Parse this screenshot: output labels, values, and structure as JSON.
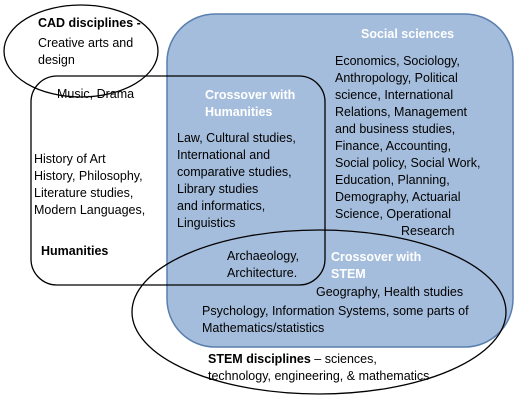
{
  "colors": {
    "social_sciences_fill": "#a5bddc",
    "social_sciences_border": "#5a7fae",
    "outline": "#000000",
    "white_text": "#ffffff"
  },
  "cad": {
    "title": "CAD disciplines -",
    "lines": [
      "Creative arts and",
      "design"
    ]
  },
  "music": {
    "label": "Music, Drama"
  },
  "humanities": {
    "lines": [
      "History of Art",
      "History, Philosophy,",
      "Literature studies,",
      "Modern Languages,"
    ],
    "title": "Humanities"
  },
  "social_sciences": {
    "title": "Social sciences",
    "lines": [
      "Economics, Sociology,",
      "Anthropology, Political",
      "science, International",
      "Relations, Management",
      "and business studies,",
      "Finance, Accounting,",
      "Social policy, Social Work,",
      "Education, Planning,",
      "Demography, Actuarial",
      "Science, Operational",
      "Research"
    ]
  },
  "crossover_humanities": {
    "title_lines": [
      "Crossover with",
      "Humanities"
    ],
    "lines": [
      "Law, Cultural studies,",
      "International and",
      "comparative studies,",
      "Library studies",
      "and informatics,",
      "Linguistics"
    ]
  },
  "archaeology": {
    "lines": [
      "Archaeology,",
      "Architecture."
    ]
  },
  "crossover_stem": {
    "title_lines": [
      "Crossover with",
      "STEM"
    ],
    "line1": "Geography, Health studies",
    "line2": "Psychology, Information Systems, some parts of",
    "line3": "Mathematics/statistics"
  },
  "stem": {
    "title": "STEM disciplines",
    "title_rest": " – sciences,",
    "line2": "technology, engineering, & mathematics"
  }
}
